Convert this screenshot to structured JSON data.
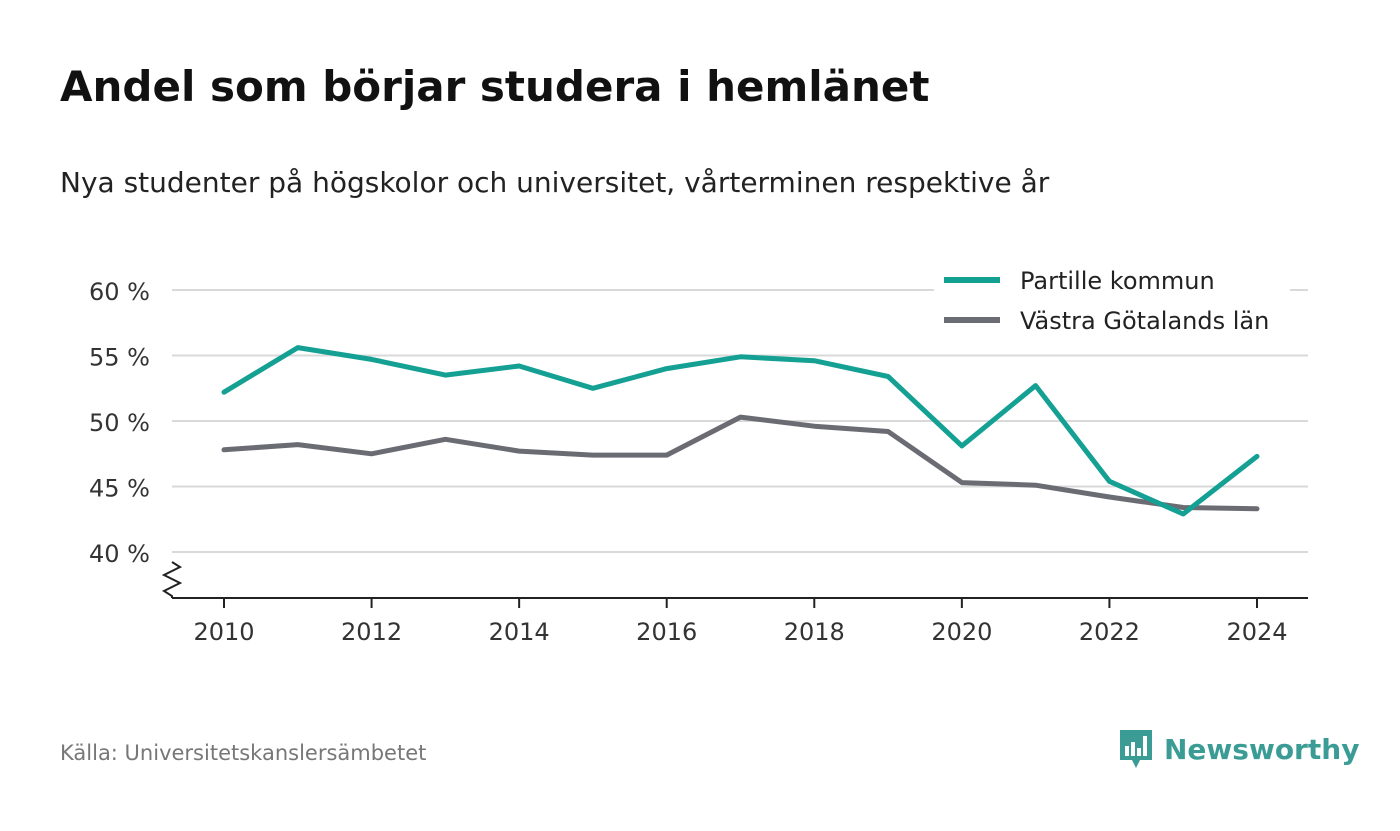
{
  "title": "Andel som börjar studera i hemlänet",
  "subtitle": "Nya studenter på högskolor och universitet, vårterminen respektive år",
  "source": "Källa: Universitetskanslersämbetet",
  "brand": {
    "name": "Newsworthy",
    "icon": "newsworthy-logo-icon",
    "color": "#3a9c95"
  },
  "colors": {
    "series1": "#15a094",
    "series2": "#6b6b73",
    "grid": "#d9d9d9",
    "axis": "#222222"
  },
  "chart_data": {
    "type": "line",
    "x": [
      2010,
      2011,
      2012,
      2013,
      2014,
      2015,
      2016,
      2017,
      2018,
      2019,
      2020,
      2021,
      2022,
      2023,
      2024
    ],
    "x_ticks": [
      "2010",
      "2012",
      "2014",
      "2016",
      "2018",
      "2020",
      "2022",
      "2024"
    ],
    "y_ticks": [
      "40 %",
      "45 %",
      "50 %",
      "55 %",
      "60 %"
    ],
    "ylim": [
      36.5,
      62
    ],
    "y_axis_break": true,
    "grid": true,
    "legend_position": "top-right",
    "series": [
      {
        "name": "Partille kommun",
        "color": "#15a094",
        "values": [
          52.2,
          55.6,
          54.7,
          53.5,
          54.2,
          52.5,
          54.0,
          54.9,
          54.6,
          53.4,
          48.1,
          52.7,
          45.4,
          42.9,
          47.3
        ]
      },
      {
        "name": "Västra Götalands län",
        "color": "#6b6b73",
        "values": [
          47.8,
          48.2,
          47.5,
          48.6,
          47.7,
          47.4,
          47.4,
          50.3,
          49.6,
          49.2,
          45.3,
          45.1,
          44.2,
          43.4,
          43.3
        ]
      }
    ]
  }
}
